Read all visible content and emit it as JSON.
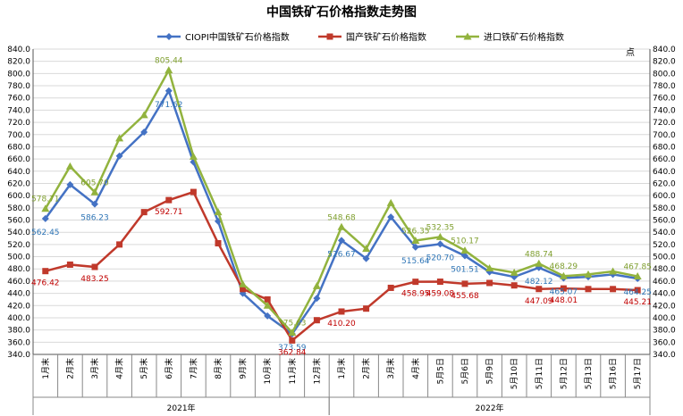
{
  "chart_data": {
    "type": "line",
    "title": "中国铁矿石价格指数走势图",
    "right_axis_unit": "点",
    "ylim": [
      340,
      840
    ],
    "ytick_step": 20,
    "grid": true,
    "legend_position": "top",
    "categories": [
      "1月末",
      "2月末",
      "3月末",
      "4月末",
      "5月末",
      "6月末",
      "7月末",
      "8月末",
      "9月末",
      "10月末",
      "11月末",
      "12月末",
      "1月末",
      "2月末",
      "3月末",
      "4月末",
      "5月5日",
      "5月6日",
      "5月9日",
      "5月10日",
      "5月11日",
      "5月12日",
      "5月13日",
      "5月16日",
      "5月17日"
    ],
    "year_groups": [
      {
        "label": "2021年",
        "start": 0,
        "end": 11
      },
      {
        "label": "2022年",
        "start": 12,
        "end": 24
      }
    ],
    "series": [
      {
        "name": "CIOPI中国铁矿石价格指数",
        "color": "#4472C4",
        "marker": "diamond",
        "values": [
          562.45,
          618,
          586.23,
          665,
          704,
          771.62,
          655,
          558,
          440,
          403,
          373.59,
          432,
          526.67,
          497,
          565,
          515.64,
          520.7,
          501.51,
          475,
          467,
          482.12,
          465.07,
          467,
          471,
          464.25
        ],
        "labels": {
          "0": "562.45",
          "2": "586.23",
          "5": "771.62",
          "10": "373.59",
          "12": "526.67",
          "15": "515.64",
          "16": "520.70",
          "17": "501.51",
          "20": "482.12",
          "21": "465.07",
          "24": "464.25"
        }
      },
      {
        "name": "国产铁矿石价格指数",
        "color": "#C0392B",
        "marker": "square",
        "values": [
          476.42,
          487,
          483.25,
          520,
          573,
          592.71,
          606,
          522,
          447,
          430,
          362.84,
          396,
          410.2,
          415,
          449,
          458.95,
          459.08,
          455.68,
          457,
          453,
          447.09,
          448.01,
          447,
          447,
          445.21
        ],
        "labels": {
          "0": "476.42",
          "2": "483.25",
          "5": "592.71",
          "10": "362.84",
          "12": "410.20",
          "15": "458.95",
          "16": "459.08",
          "17": "455.68",
          "20": "447.09",
          "21": "448.01",
          "24": "445.21"
        }
      },
      {
        "name": "进口铁矿石价格指数",
        "color": "#92B33E",
        "marker": "triangle",
        "values": [
          578.71,
          648,
          605.7,
          694,
          732,
          805.44,
          664,
          573,
          455,
          420,
          375.63,
          452,
          548.68,
          513,
          588,
          526.35,
          532.35,
          510.17,
          481,
          474,
          488.74,
          468.29,
          471,
          476,
          467.85
        ],
        "labels": {
          "0": "578.71",
          "2": "605.70",
          "5": "805.44",
          "10": "375.63",
          "12": "548.68",
          "15": "526.35",
          "16": "532.35",
          "17": "510.17",
          "20": "488.74",
          "21": "468.29",
          "24": "467.85"
        }
      }
    ]
  }
}
